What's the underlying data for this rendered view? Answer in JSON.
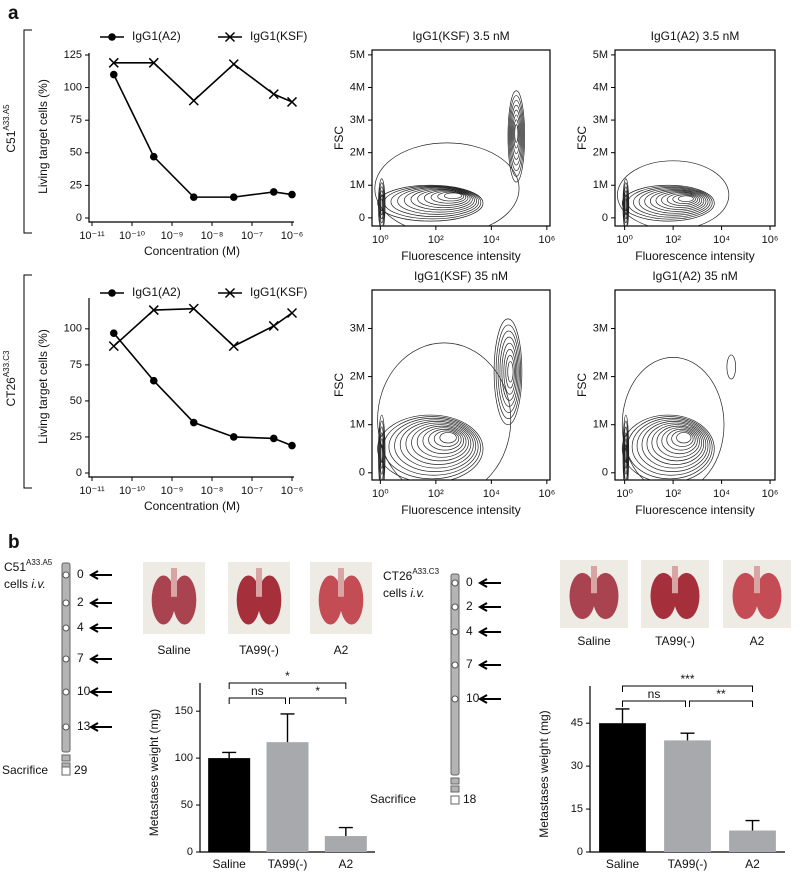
{
  "panel_labels": [
    "a",
    "b"
  ],
  "chart_data": [
    {
      "type": "line",
      "row_label": {
        "text": "C51",
        "sup": "A33.A5"
      },
      "xlabel": "Concentration (M)",
      "ylabel": "Living target cells (%)",
      "xscale": "log",
      "x": [
        3.5e-11,
        3.5e-10,
        3.5e-09,
        3.5e-08,
        3.5e-07,
        1e-06
      ],
      "series": [
        {
          "name": "IgG1(A2)",
          "marker": "circle",
          "color": "#000000",
          "values": [
            110,
            47,
            16,
            16,
            20,
            18
          ]
        },
        {
          "name": "IgG1(KSF)",
          "marker": "x",
          "color": "#000000",
          "values": [
            119,
            119,
            90,
            118,
            95,
            89
          ]
        }
      ],
      "xlim": [
        1e-11,
        1e-06
      ],
      "xticks": [
        {
          "value": 1e-11,
          "label": "10⁻¹¹"
        },
        {
          "value": 1e-10,
          "label": "10⁻¹⁰"
        },
        {
          "value": 1e-09,
          "label": "10⁻⁹"
        },
        {
          "value": 1e-08,
          "label": "10⁻⁸"
        },
        {
          "value": 1e-07,
          "label": "10⁻⁷"
        },
        {
          "value": 1e-06,
          "label": "10⁻⁶"
        }
      ],
      "ylim": [
        0,
        125
      ],
      "yticks": [
        0,
        25,
        50,
        75,
        100,
        125
      ]
    },
    {
      "type": "line",
      "row_label": {
        "text": "CT26",
        "sup": "A33.C3"
      },
      "xlabel": "Concentration (M)",
      "ylabel": "Living target cells (%)",
      "xscale": "log",
      "x": [
        3.5e-11,
        3.5e-10,
        3.5e-09,
        3.5e-08,
        3.5e-07,
        1e-06
      ],
      "series": [
        {
          "name": "IgG1(A2)",
          "marker": "circle",
          "color": "#000000",
          "values": [
            97,
            64,
            35,
            25,
            24,
            19
          ]
        },
        {
          "name": "IgG1(KSF)",
          "marker": "x",
          "color": "#000000",
          "values": [
            88,
            113,
            114,
            88,
            102,
            111
          ]
        }
      ],
      "xlim": [
        1e-11,
        1e-06
      ],
      "xticks": [
        {
          "value": 1e-11,
          "label": "10⁻¹¹"
        },
        {
          "value": 1e-10,
          "label": "10⁻¹⁰"
        },
        {
          "value": 1e-09,
          "label": "10⁻⁹"
        },
        {
          "value": 1e-08,
          "label": "10⁻⁸"
        },
        {
          "value": 1e-07,
          "label": "10⁻⁷"
        },
        {
          "value": 1e-06,
          "label": "10⁻⁶"
        }
      ],
      "ylim": [
        0,
        120
      ],
      "yticks": [
        0,
        25,
        50,
        75,
        100
      ]
    },
    {
      "type": "contour",
      "title": "IgG1(KSF) 3.5 nM",
      "xlabel": "Fluorescence intensity",
      "ylabel": "FSC",
      "xscale": "log",
      "xlim": [
        0.5,
        1300000
      ],
      "xticks": [
        {
          "value": 1,
          "label": "10⁰"
        },
        {
          "value": 100,
          "label": "10²"
        },
        {
          "value": 10000,
          "label": "10⁴"
        },
        {
          "value": 1000000,
          "label": "10⁶"
        }
      ],
      "ylim": [
        -250000,
        5150000
      ],
      "yticks": [
        0,
        {
          "value": 1000000,
          "label": "1M"
        },
        {
          "value": 2000000,
          "label": "2M"
        },
        {
          "value": 3000000,
          "label": "3M"
        },
        {
          "value": 4000000,
          "label": "4M"
        },
        {
          "value": 5000000,
          "label": "5M"
        }
      ]
    },
    {
      "type": "contour",
      "title": "IgG1(A2) 3.5 nM",
      "xlabel": "Fluorescence intensity",
      "ylabel": "FSC",
      "xscale": "log",
      "xlim": [
        0.4,
        1600000
      ],
      "xticks": [
        {
          "value": 1,
          "label": "10⁰"
        },
        {
          "value": 100,
          "label": "10²"
        },
        {
          "value": 10000,
          "label": "10⁴"
        },
        {
          "value": 1000000,
          "label": "10⁶"
        }
      ],
      "ylim": [
        -250000,
        5150000
      ],
      "yticks": [
        0,
        {
          "value": 1000000,
          "label": "1M"
        },
        {
          "value": 2000000,
          "label": "2M"
        },
        {
          "value": 3000000,
          "label": "3M"
        },
        {
          "value": 4000000,
          "label": "4M"
        },
        {
          "value": 5000000,
          "label": "5M"
        }
      ]
    },
    {
      "type": "contour",
      "title": "IgG1(KSF) 35 nM",
      "xlabel": "Fluorescence intensity",
      "ylabel": "FSC",
      "xscale": "log",
      "xlim": [
        0.5,
        1300000
      ],
      "xticks": [
        {
          "value": 1,
          "label": "10⁰"
        },
        {
          "value": 100,
          "label": "10²"
        },
        {
          "value": 10000,
          "label": "10⁴"
        },
        {
          "value": 1000000,
          "label": "10⁶"
        }
      ],
      "ylim": [
        -150000,
        3800000
      ],
      "yticks": [
        0,
        {
          "value": 1000000,
          "label": "1M"
        },
        {
          "value": 2000000,
          "label": "2M"
        },
        {
          "value": 3000000,
          "label": "3M"
        }
      ]
    },
    {
      "type": "contour",
      "title": "IgG1(A2) 35 nM",
      "xlabel": "Fluorescence intensity",
      "ylabel": "FSC",
      "xscale": "log",
      "xlim": [
        0.4,
        1600000
      ],
      "xticks": [
        {
          "value": 1,
          "label": "10⁰"
        },
        {
          "value": 100,
          "label": "10²"
        },
        {
          "value": 10000,
          "label": "10⁴"
        },
        {
          "value": 1000000,
          "label": "10⁶"
        }
      ],
      "ylim": [
        -150000,
        3800000
      ],
      "yticks": [
        0,
        {
          "value": 1000000,
          "label": "1M"
        },
        {
          "value": 2000000,
          "label": "2M"
        },
        {
          "value": 3000000,
          "label": "3M"
        }
      ]
    },
    {
      "type": "bar",
      "ylabel": "Metastases weight (mg)",
      "categories": [
        "Saline",
        "TA99(-)",
        "A2"
      ],
      "values": [
        100,
        117,
        17
      ],
      "errors": [
        6,
        30,
        9
      ],
      "colors": [
        "#000000",
        "#a7a9ac",
        "#a7a9ac"
      ],
      "annotations": [
        "*",
        "ns",
        "*"
      ],
      "ylim": [
        0,
        180
      ],
      "yticks": [
        0,
        50,
        100,
        150
      ]
    },
    {
      "type": "bar",
      "ylabel": "Metastases weight (mg)",
      "categories": [
        "Saline",
        "TA99(-)",
        "A2"
      ],
      "values": [
        45,
        39,
        7.5
      ],
      "errors": [
        5,
        2.5,
        3.5
      ],
      "colors": [
        "#000000",
        "#a7a9ac",
        "#a7a9ac"
      ],
      "annotations": [
        "***",
        "ns",
        "**"
      ],
      "ylim": [
        0,
        58
      ],
      "yticks": [
        0,
        15,
        30,
        45
      ]
    }
  ],
  "timelines": [
    {
      "cell_line": "C51",
      "cell_sup": "A33.A5",
      "route": "cells",
      "route_italic": "i.v.",
      "injection_days": [
        "0",
        "2",
        "4",
        "7",
        "10",
        "13"
      ],
      "sacrifice_label": "Sacrifice",
      "sacrifice_day": "29",
      "photo_labels": [
        "Saline",
        "TA99(-)",
        "A2"
      ]
    },
    {
      "cell_line": "CT26",
      "cell_sup": "A33.C3",
      "route": "cells",
      "route_italic": "i.v.",
      "injection_days": [
        "0",
        "2",
        "4",
        "7",
        "10"
      ],
      "sacrifice_label": "Sacrifice",
      "sacrifice_day": "18",
      "photo_labels": [
        "Saline",
        "TA99(-)",
        "A2"
      ]
    }
  ]
}
